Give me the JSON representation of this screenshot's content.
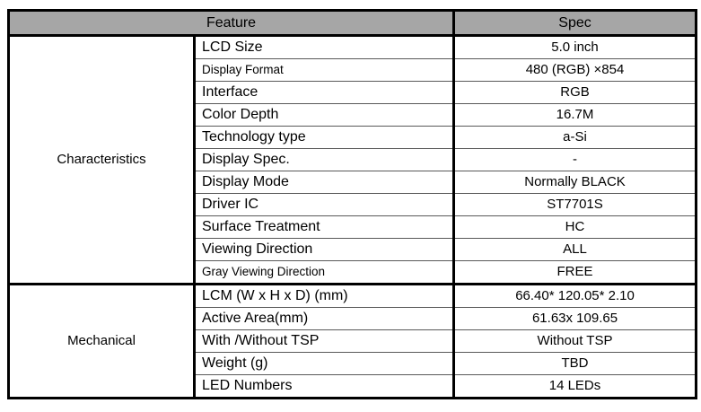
{
  "header": {
    "feature": "Feature",
    "spec": "Spec"
  },
  "sections": [
    {
      "name": "Characteristics",
      "rows": [
        {
          "feature": "LCD Size",
          "spec": "5.0 inch"
        },
        {
          "feature": "Display Format",
          "spec": "480 (RGB) ×854"
        },
        {
          "feature": "Interface",
          "spec": "RGB"
        },
        {
          "feature": "Color Depth",
          "spec": "16.7M"
        },
        {
          "feature": "Technology type",
          "spec": "a-Si"
        },
        {
          "feature": "Display Spec.",
          "spec": "-"
        },
        {
          "feature": "Display Mode",
          "spec": "Normally BLACK"
        },
        {
          "feature": "Driver IC",
          "spec": "ST7701S"
        },
        {
          "feature": "Surface Treatment",
          "spec": "HC"
        },
        {
          "feature": "Viewing Direction",
          "spec": "ALL"
        },
        {
          "feature": "Gray Viewing Direction",
          "spec": "FREE"
        }
      ]
    },
    {
      "name": "Mechanical",
      "rows": [
        {
          "feature": "LCM (W x H x D) (mm)",
          "spec": "66.40* 120.05* 2.10"
        },
        {
          "feature": "Active Area(mm)",
          "spec": "61.63x 109.65"
        },
        {
          "feature": "With /Without TSP",
          "spec": "Without TSP"
        },
        {
          "feature": "Weight (g)",
          "spec": "TBD"
        },
        {
          "feature": "LED Numbers",
          "spec": "14 LEDs"
        }
      ]
    }
  ],
  "colors": {
    "header_bg": "#a6a6a6",
    "border": "#000000",
    "grid_line": "#595959"
  }
}
